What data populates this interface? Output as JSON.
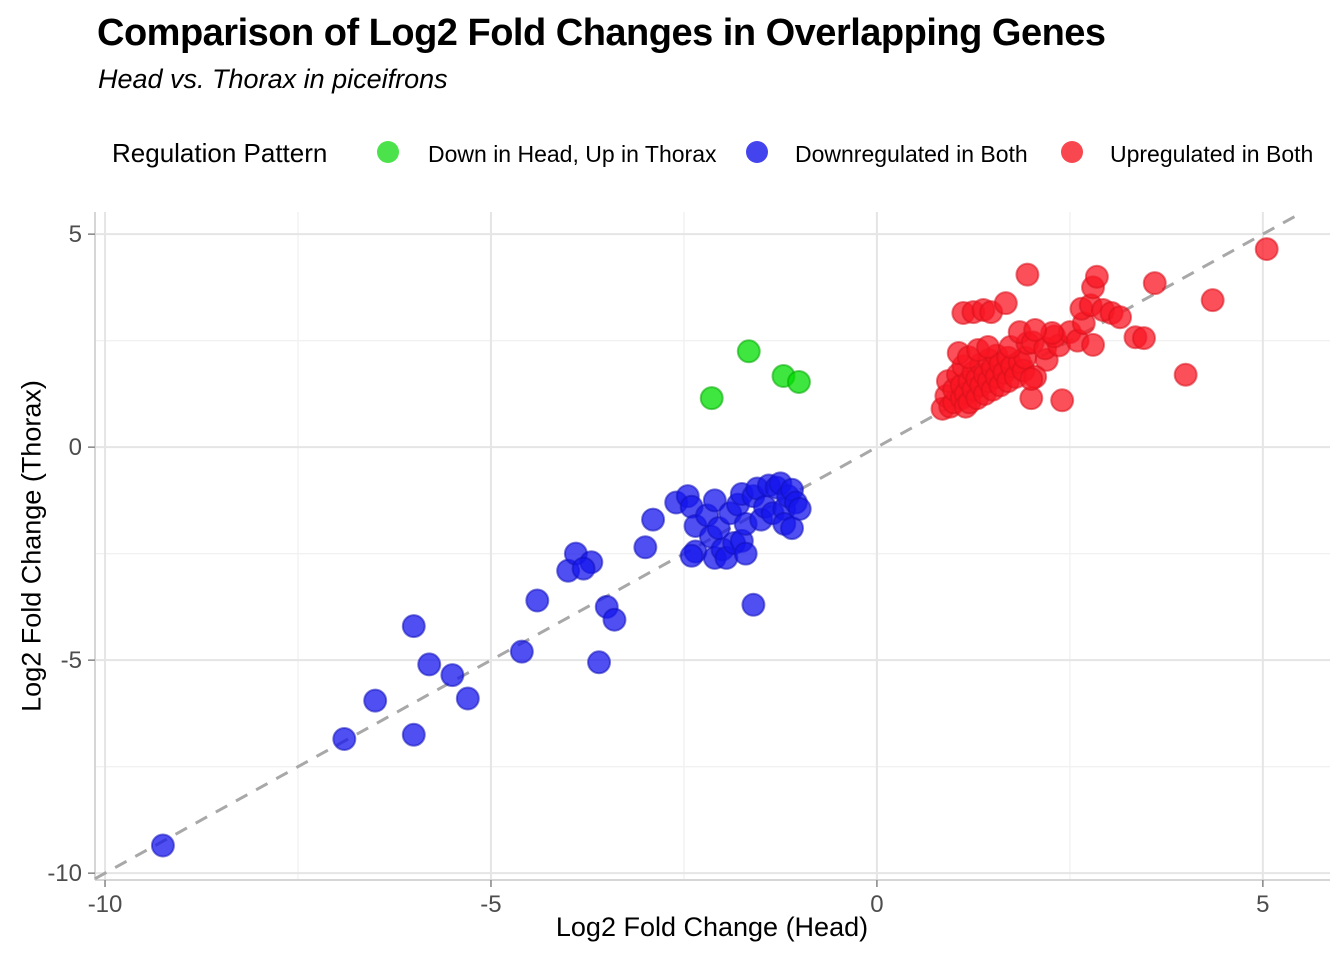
{
  "chart_data": {
    "type": "scatter",
    "title": "Comparison of Log2 Fold Changes in Overlapping Genes",
    "subtitle": "Head vs. Thorax in piceifrons",
    "xlabel": "Log2 Fold Change (Head)",
    "ylabel": "Log2 Fold Change (Thorax)",
    "xlim": [
      -10.13,
      5.87
    ],
    "ylim": [
      -10.16,
      5.52
    ],
    "x_ticks": {
      "values": [
        -10,
        -5,
        0,
        5
      ],
      "labels": [
        "-10",
        "-5",
        "0",
        "5"
      ],
      "minor": [
        -7.5,
        -2.5,
        2.5
      ]
    },
    "y_ticks": {
      "values": [
        5,
        0,
        -5,
        -10
      ],
      "labels": [
        "5",
        "0",
        "-5",
        "-10"
      ],
      "minor": [
        2.5,
        -2.5,
        -7.5
      ]
    },
    "grid": "major+minor",
    "legend_position": "top",
    "legend_title": "Regulation Pattern",
    "identity_line": {
      "equation": "y = x",
      "style": "dashed",
      "color": "#a8a8a8"
    },
    "colors": {
      "grid_major": "#e5e5e5",
      "grid_minor": "#f1f1f1",
      "axis_line": "#d6d6d6",
      "tick_mark": "#8c8c8c",
      "tick_text": "#4d4d4d"
    },
    "series": [
      {
        "name": "Down in Head, Up in Thorax",
        "legend_color": "#4ce24c",
        "fill": "#00dd00",
        "stroke": "#00a800",
        "opacity": 0.75,
        "points": [
          [
            -2.14,
            1.15
          ],
          [
            -1.66,
            2.25
          ],
          [
            -1.21,
            1.67
          ],
          [
            -1.01,
            1.53
          ]
        ]
      },
      {
        "name": "Downregulated in Both",
        "legend_color": "#4444ef",
        "fill": "#1616ee",
        "stroke": "#1111bb",
        "opacity": 0.75,
        "points": [
          [
            -9.25,
            -9.35
          ],
          [
            -6.9,
            -6.85
          ],
          [
            -6.0,
            -6.75
          ],
          [
            -6.5,
            -5.95
          ],
          [
            -5.8,
            -5.1
          ],
          [
            -6.0,
            -4.2
          ],
          [
            -5.5,
            -5.35
          ],
          [
            -5.3,
            -5.9
          ],
          [
            -4.6,
            -4.8
          ],
          [
            -4.4,
            -3.6
          ],
          [
            -4.0,
            -2.9
          ],
          [
            -3.9,
            -2.5
          ],
          [
            -3.7,
            -2.7
          ],
          [
            -3.8,
            -2.85
          ],
          [
            -3.5,
            -3.75
          ],
          [
            -3.4,
            -4.05
          ],
          [
            -3.6,
            -5.05
          ],
          [
            -1.6,
            -3.7
          ],
          [
            -2.9,
            -1.7
          ],
          [
            -3.0,
            -2.35
          ],
          [
            -2.6,
            -1.3
          ],
          [
            -2.45,
            -1.15
          ],
          [
            -2.4,
            -1.4
          ],
          [
            -2.35,
            -1.85
          ],
          [
            -2.35,
            -2.45
          ],
          [
            -2.4,
            -2.55
          ],
          [
            -2.2,
            -1.6
          ],
          [
            -2.1,
            -1.25
          ],
          [
            -2.15,
            -2.1
          ],
          [
            -2.1,
            -2.6
          ],
          [
            -2.0,
            -2.4
          ],
          [
            -2.05,
            -1.9
          ],
          [
            -1.95,
            -2.6
          ],
          [
            -1.9,
            -1.55
          ],
          [
            -1.85,
            -2.25
          ],
          [
            -1.75,
            -2.2
          ],
          [
            -1.7,
            -2.5
          ],
          [
            -1.8,
            -1.35
          ],
          [
            -1.75,
            -1.1
          ],
          [
            -1.7,
            -1.8
          ],
          [
            -1.6,
            -1.15
          ],
          [
            -1.55,
            -0.97
          ],
          [
            -1.5,
            -1.7
          ],
          [
            -1.45,
            -1.4
          ],
          [
            -1.4,
            -0.9
          ],
          [
            -1.35,
            -1.55
          ],
          [
            -1.3,
            -0.95
          ],
          [
            -1.25,
            -0.85
          ],
          [
            -1.2,
            -1.45
          ],
          [
            -1.2,
            -1.8
          ],
          [
            -1.15,
            -1.15
          ],
          [
            -1.1,
            -1.9
          ],
          [
            -1.1,
            -1.0
          ],
          [
            -1.05,
            -1.3
          ],
          [
            -1.0,
            -1.45
          ]
        ]
      },
      {
        "name": "Upregulated in Both",
        "legend_color": "#f8474e",
        "fill": "#fa1523",
        "stroke": "#d8101c",
        "opacity": 0.75,
        "points": [
          [
            0.85,
            0.9
          ],
          [
            0.9,
            1.2
          ],
          [
            0.92,
            1.55
          ],
          [
            0.95,
            0.95
          ],
          [
            1.0,
            1.05
          ],
          [
            1.0,
            1.35
          ],
          [
            1.05,
            1.7
          ],
          [
            1.1,
            1.15
          ],
          [
            1.1,
            1.45
          ],
          [
            1.12,
            1.9
          ],
          [
            1.15,
            1.25
          ],
          [
            1.15,
            0.95
          ],
          [
            1.2,
            1.55
          ],
          [
            1.2,
            1.05
          ],
          [
            1.25,
            1.75
          ],
          [
            1.25,
            1.35
          ],
          [
            1.3,
            1.6
          ],
          [
            1.3,
            1.15
          ],
          [
            1.35,
            1.95
          ],
          [
            1.35,
            1.45
          ],
          [
            1.4,
            1.7
          ],
          [
            1.4,
            1.25
          ],
          [
            1.45,
            2.05
          ],
          [
            1.45,
            1.55
          ],
          [
            1.5,
            1.85
          ],
          [
            1.5,
            1.35
          ],
          [
            1.55,
            1.65
          ],
          [
            1.55,
            2.15
          ],
          [
            1.6,
            1.45
          ],
          [
            1.6,
            1.95
          ],
          [
            1.65,
            1.75
          ],
          [
            1.7,
            2.1
          ],
          [
            1.7,
            1.55
          ],
          [
            1.75,
            1.9
          ],
          [
            1.8,
            1.65
          ],
          [
            1.85,
            2.0
          ],
          [
            1.9,
            1.8
          ],
          [
            1.92,
            2.1
          ],
          [
            2.2,
            2.05
          ],
          [
            1.06,
            2.21
          ],
          [
            1.19,
            2.11
          ],
          [
            1.31,
            2.28
          ],
          [
            1.44,
            2.35
          ],
          [
            1.73,
            2.35
          ],
          [
            1.95,
            2.44
          ],
          [
            1.85,
            2.7
          ],
          [
            2.02,
            2.46
          ],
          [
            2.18,
            2.32
          ],
          [
            2.36,
            2.39
          ],
          [
            2.3,
            2.6
          ],
          [
            2.5,
            2.7
          ],
          [
            2.27,
            2.68
          ],
          [
            2.05,
            2.75
          ],
          [
            2.6,
            2.5
          ],
          [
            2.8,
            2.4
          ],
          [
            2.68,
            2.91
          ],
          [
            3.35,
            2.58
          ],
          [
            3.46,
            2.56
          ],
          [
            1.12,
            3.15
          ],
          [
            1.25,
            3.17
          ],
          [
            1.38,
            3.22
          ],
          [
            1.48,
            3.17
          ],
          [
            1.67,
            3.38
          ],
          [
            2.65,
            3.25
          ],
          [
            2.77,
            3.33
          ],
          [
            2.93,
            3.22
          ],
          [
            3.04,
            3.15
          ],
          [
            3.15,
            3.05
          ],
          [
            1.95,
            4.05
          ],
          [
            2.8,
            3.75
          ],
          [
            2.85,
            4.0
          ],
          [
            3.6,
            3.85
          ],
          [
            4.35,
            3.45
          ],
          [
            5.05,
            4.65
          ],
          [
            4.0,
            1.7
          ],
          [
            2.4,
            1.1
          ],
          [
            2.0,
            1.15
          ],
          [
            2.05,
            1.65
          ],
          [
            2.0,
            1.6
          ]
        ]
      }
    ]
  }
}
